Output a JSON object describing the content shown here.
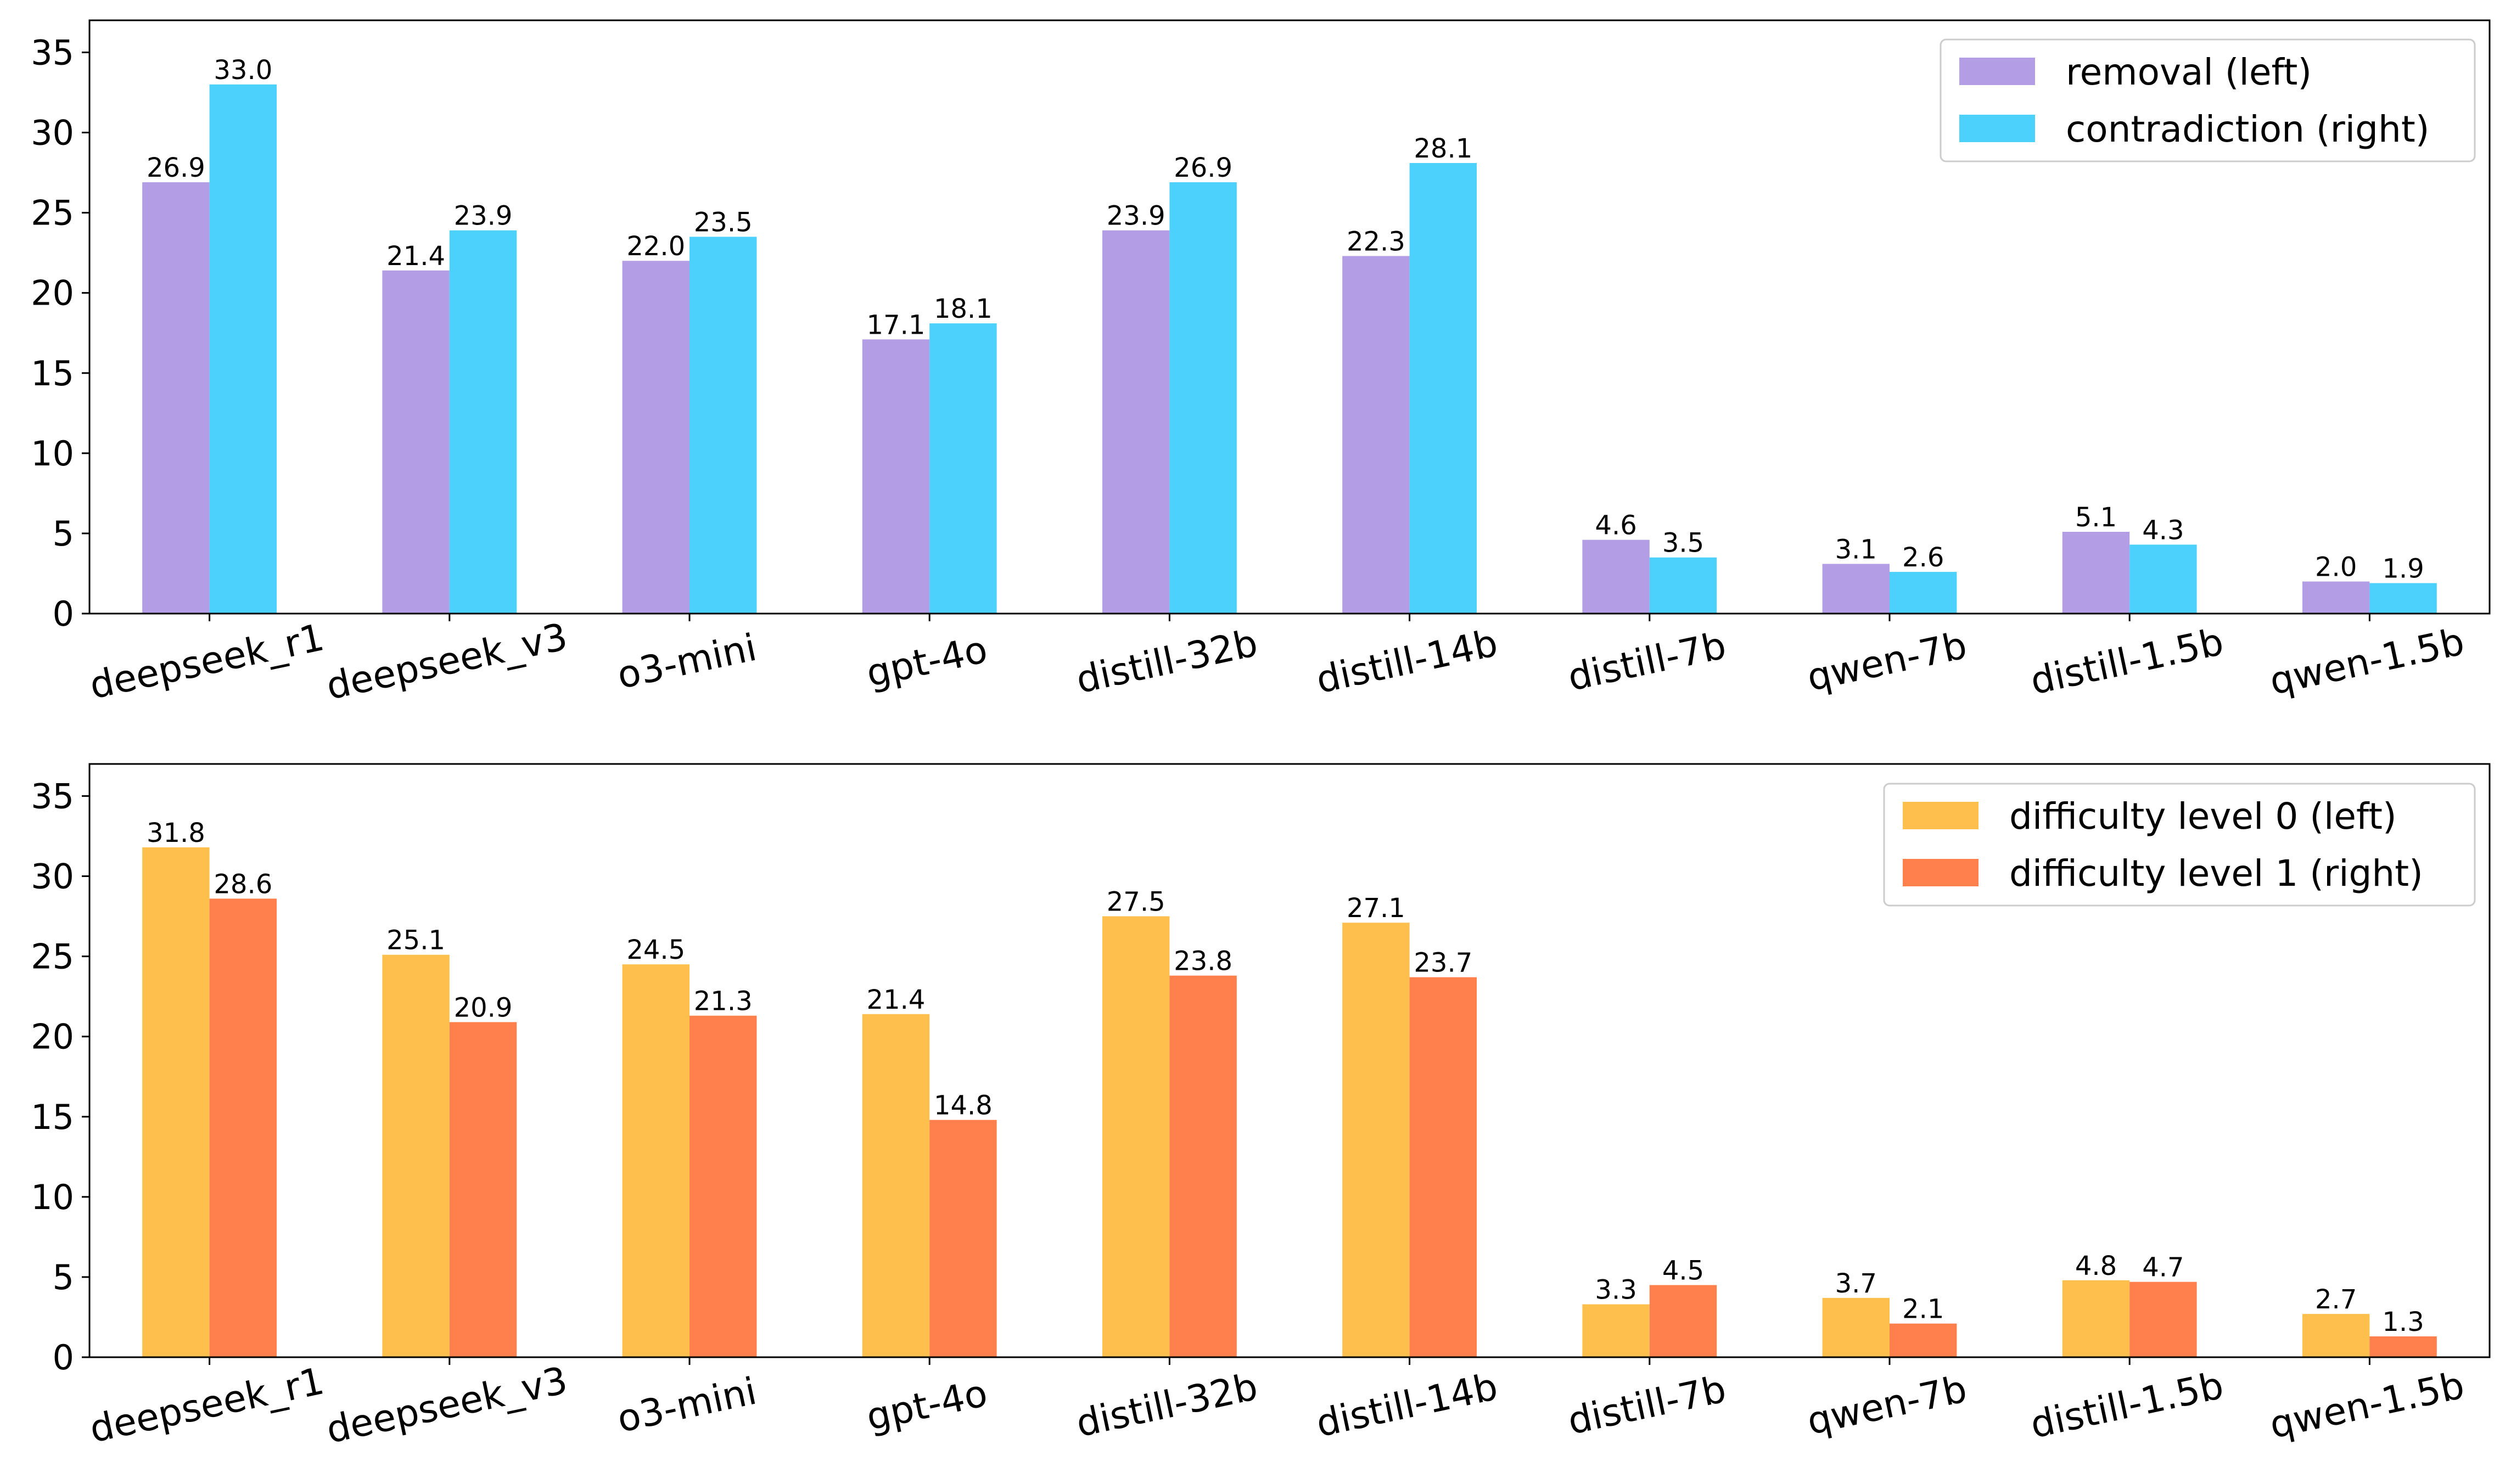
{
  "chart_data": [
    {
      "type": "bar",
      "categories": [
        "deepseek_r1",
        "deepseek_v3",
        "o3-mini",
        "gpt-4o",
        "distill-32b",
        "distill-14b",
        "distill-7b",
        "qwen-7b",
        "distill-1.5b",
        "qwen-1.5b"
      ],
      "series": [
        {
          "name": "removal (left)",
          "color": "#b39de5",
          "values": [
            26.9,
            21.4,
            22.0,
            17.1,
            23.9,
            22.3,
            4.6,
            3.1,
            5.1,
            2.0
          ],
          "labels": [
            "26.9",
            "21.4",
            "22.0",
            "17.1",
            "23.9",
            "22.3",
            "4.6",
            "3.1",
            "5.1",
            "2.0"
          ]
        },
        {
          "name": "contradiction (right)",
          "color": "#4cd1fd",
          "values": [
            33.0,
            23.9,
            23.5,
            18.1,
            26.9,
            28.1,
            3.5,
            2.6,
            4.3,
            1.9
          ],
          "labels": [
            "33.0",
            "23.9",
            "23.5",
            "18.1",
            "26.9",
            "28.1",
            "3.5",
            "2.6",
            "4.3",
            "1.9"
          ]
        }
      ],
      "ylim": [
        0,
        37
      ],
      "yticks": [
        0,
        5,
        10,
        15,
        20,
        25,
        30,
        35
      ],
      "ytick_labels": [
        "0",
        "5",
        "10",
        "15",
        "20",
        "25",
        "30",
        "35"
      ],
      "legend_position": "top-right",
      "title": "",
      "xlabel": "",
      "ylabel": ""
    },
    {
      "type": "bar",
      "categories": [
        "deepseek_r1",
        "deepseek_v3",
        "o3-mini",
        "gpt-4o",
        "distill-32b",
        "distill-14b",
        "distill-7b",
        "qwen-7b",
        "distill-1.5b",
        "qwen-1.5b"
      ],
      "series": [
        {
          "name": "difficulty level 0 (left)",
          "color": "#ffbf4d",
          "values": [
            31.8,
            25.1,
            24.5,
            21.4,
            27.5,
            27.1,
            3.3,
            3.7,
            4.8,
            2.7
          ],
          "labels": [
            "31.8",
            "25.1",
            "24.5",
            "21.4",
            "27.5",
            "27.1",
            "3.3",
            "3.7",
            "4.8",
            "2.7"
          ]
        },
        {
          "name": "difficulty level 1 (right)",
          "color": "#ff7f4d",
          "values": [
            28.6,
            20.9,
            21.3,
            14.8,
            23.8,
            23.7,
            4.5,
            2.1,
            4.7,
            1.3
          ],
          "labels": [
            "28.6",
            "20.9",
            "21.3",
            "14.8",
            "23.8",
            "23.7",
            "4.5",
            "2.1",
            "4.7",
            "1.3"
          ]
        }
      ],
      "ylim": [
        0,
        37
      ],
      "yticks": [
        0,
        5,
        10,
        15,
        20,
        25,
        30,
        35
      ],
      "ytick_labels": [
        "0",
        "5",
        "10",
        "15",
        "20",
        "25",
        "30",
        "35"
      ],
      "legend_position": "top-right",
      "title": "",
      "xlabel": "",
      "ylabel": ""
    }
  ]
}
